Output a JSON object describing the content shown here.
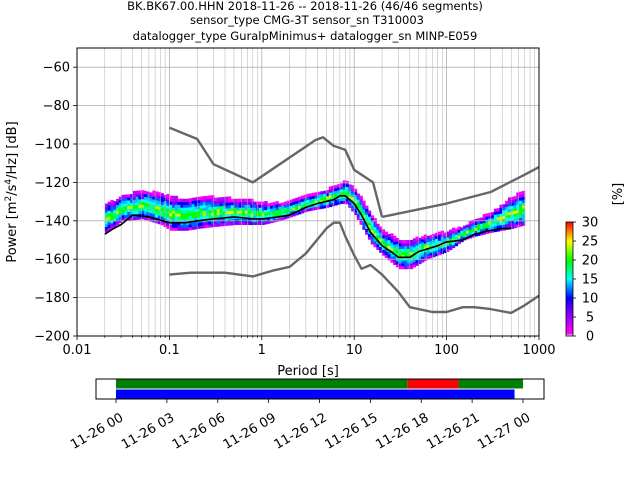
{
  "header": {
    "line1": "BK.BK67.00.HHN   2018-11-26 -- 2018-11-26  (46/46 segments)",
    "line2": "sensor_type CMG-3T sensor_sn T310003",
    "line3": "datalogger_type GuralpMinimus+ datalogger_sn MINP-E059"
  },
  "chart_data": [
    {
      "type": "heatmap",
      "title": "",
      "xlabel": "Period [s]",
      "ylabel": "Power [m²/s⁴/Hz] [dB]",
      "xscale": "log",
      "xlim": [
        0.01,
        1000
      ],
      "ylim": [
        -200,
        -50
      ],
      "xticks": [
        0.01,
        0.1,
        1,
        10,
        100,
        1000
      ],
      "xtick_labels": [
        "0.01",
        "0.1",
        "1",
        "10",
        "100",
        "1000"
      ],
      "yticks": [
        -60,
        -80,
        -100,
        -120,
        -140,
        -160,
        -180,
        -200
      ],
      "ytick_labels": [
        "−60",
        "−80",
        "−100",
        "−120",
        "−140",
        "−160",
        "−180",
        "−200"
      ],
      "grid": true,
      "colorbar": {
        "label": "[%]",
        "ticks": [
          0,
          5,
          10,
          15,
          20,
          25,
          30
        ],
        "tick_labels": [
          "0",
          "5",
          "10",
          "15",
          "20",
          "25",
          "30"
        ],
        "colors": [
          "#ffffff",
          "#ff00ff",
          "#0000ff",
          "#00ffff",
          "#00ff00",
          "#ffff00",
          "#ff0000"
        ]
      },
      "ppsd_band": {
        "period": [
          0.02,
          0.025,
          0.03,
          0.05,
          0.08,
          0.1,
          0.15,
          0.2,
          0.3,
          0.5,
          0.8,
          1,
          1.5,
          2,
          3,
          5,
          7,
          8,
          10,
          15,
          20,
          30,
          40,
          60,
          100,
          150,
          200,
          300,
          500,
          700
        ],
        "upper": [
          -131,
          -130,
          -127,
          -125,
          -126,
          -128,
          -129,
          -128,
          -128,
          -129,
          -130,
          -131,
          -131,
          -130,
          -127,
          -124,
          -121,
          -120,
          -124,
          -137,
          -146,
          -150,
          -150,
          -148,
          -146,
          -143,
          -140,
          -136,
          -128,
          -124
        ],
        "lower": [
          -146,
          -143,
          -140,
          -139,
          -142,
          -145,
          -145,
          -144,
          -143,
          -142,
          -142,
          -142,
          -140,
          -138,
          -135,
          -133,
          -131,
          -131,
          -137,
          -152,
          -158,
          -165,
          -165,
          -160,
          -156,
          -150,
          -148,
          -146,
          -144,
          -142
        ]
      },
      "series": [
        {
          "color": "#000000",
          "x": [
            0.02,
            0.025,
            0.03,
            0.04,
            0.06,
            0.1,
            0.15,
            0.2,
            0.3,
            0.5,
            0.8,
            1,
            1.5,
            2,
            3,
            4,
            6,
            7,
            8,
            10,
            12,
            15,
            20,
            25,
            30,
            40,
            50,
            80,
            100,
            150,
            200,
            300,
            400,
            500
          ],
          "y": [
            -147,
            -144,
            -142,
            -137,
            -138,
            -141,
            -141,
            -140,
            -139,
            -138,
            -139,
            -139,
            -138,
            -137,
            -133,
            -131,
            -129,
            -127,
            -127,
            -131,
            -137,
            -146,
            -153,
            -156,
            -159,
            -159,
            -156,
            -153,
            -151,
            -150,
            -147,
            -145,
            -144,
            -144
          ]
        },
        {
          "color": "#666666",
          "x": [
            0.1,
            0.2,
            0.3,
            0.8,
            3.8,
            4.6,
            6,
            8,
            10,
            16,
            20
          ],
          "y": [
            -91.5,
            -97.4,
            -110.5,
            -120,
            -98,
            -96.5,
            -101,
            -103,
            -113.5,
            -120,
            -138
          ]
        },
        {
          "color": "#666666",
          "x": [
            20,
            100,
            300,
            700,
            1000
          ],
          "y": [
            -138,
            -131,
            -125,
            -116,
            -112
          ]
        },
        {
          "color": "#666666",
          "x": [
            0.1,
            0.17,
            0.4,
            0.8,
            1.3,
            2,
            3,
            5,
            6,
            7,
            8,
            10,
            12,
            15,
            20,
            30,
            40,
            70,
            100,
            150,
            200,
            300,
            500,
            700,
            1000
          ],
          "y": [
            -168,
            -167,
            -167,
            -169,
            -166,
            -164,
            -157,
            -144,
            -141,
            -141,
            -148,
            -158,
            -165,
            -163,
            -168,
            -177,
            -185,
            -187.5,
            -187.5,
            -185,
            -185,
            -186,
            -188,
            -184,
            -179
          ]
        }
      ]
    },
    {
      "type": "timeline",
      "title": "",
      "xlabel": "",
      "xlim": [
        "2018-11-26T00:00",
        "2018-11-27T00:00"
      ],
      "xtick_labels": [
        "11-26 00",
        "11-26 03",
        "11-26 06",
        "11-26 09",
        "11-26 12",
        "11-26 15",
        "11-26 18",
        "11-26 21",
        "11-27 00"
      ],
      "rows": [
        {
          "segments": [
            {
              "start_h": 0,
              "end_h": 17.2,
              "color": "#008000"
            },
            {
              "start_h": 17.2,
              "end_h": 20.2,
              "color": "#ff0000"
            },
            {
              "start_h": 20.2,
              "end_h": 24,
              "color": "#008000"
            }
          ]
        },
        {
          "segments": [
            {
              "start_h": 0,
              "end_h": 23.5,
              "color": "#0000ff"
            }
          ]
        }
      ]
    }
  ]
}
